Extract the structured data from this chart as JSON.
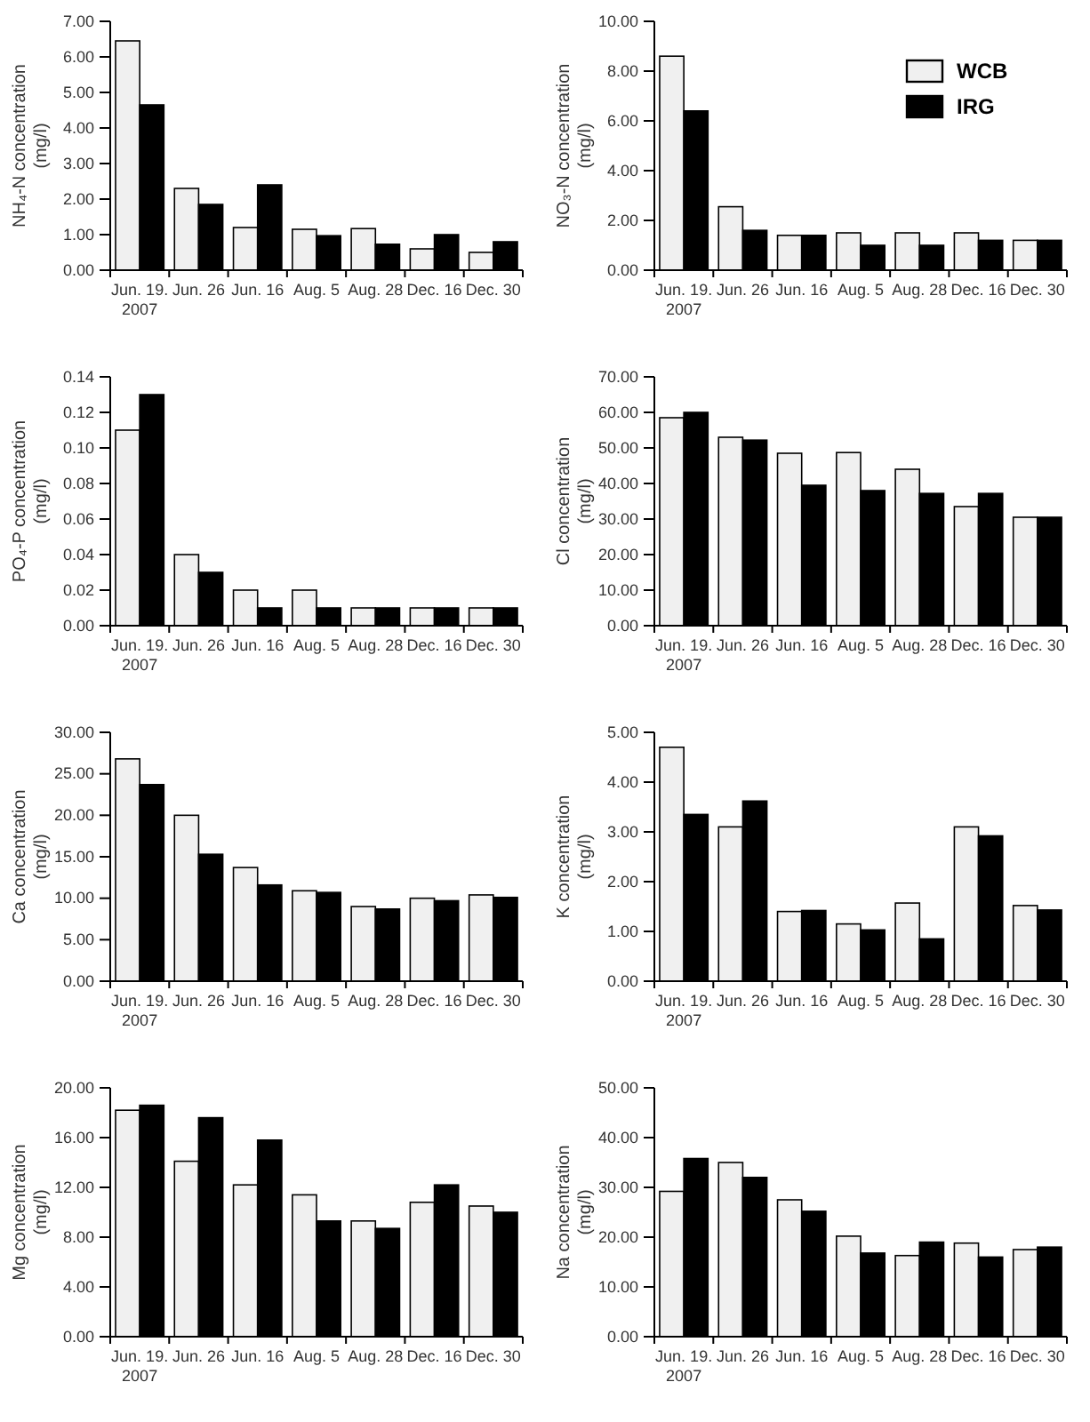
{
  "chart_data": [
    {
      "type": "bar",
      "ylabel": "NH₄-N concentration\n(mg/l)",
      "categories": [
        "Jun. 19. 2007",
        "Jun. 26",
        "Jun. 16",
        "Aug. 5",
        "Aug. 28",
        "Dec. 16",
        "Dec. 30"
      ],
      "ylim": [
        0,
        7
      ],
      "yticks": [
        {
          "value": 0,
          "label": "0.00"
        },
        {
          "value": 1,
          "label": "1.00"
        },
        {
          "value": 2,
          "label": "2.00"
        },
        {
          "value": 3,
          "label": "3.00"
        },
        {
          "value": 4,
          "label": "4.00"
        },
        {
          "value": 5,
          "label": "5.00"
        },
        {
          "value": 6,
          "label": "6.00"
        },
        {
          "value": 7,
          "label": "7.00"
        }
      ],
      "legend": false,
      "series": [
        {
          "color": "#f0f0f0",
          "values": [
            6.45,
            2.3,
            1.2,
            1.15,
            1.17,
            0.6,
            0.5
          ]
        },
        {
          "color": "#000000",
          "values": [
            4.65,
            1.85,
            2.4,
            0.97,
            0.73,
            1.0,
            0.8
          ]
        }
      ]
    },
    {
      "type": "bar",
      "ylabel": "NO₃-N concentration\n(mg/l)",
      "categories": [
        "Jun. 19. 2007",
        "Jun. 26",
        "Jun. 16",
        "Aug. 5",
        "Aug. 28",
        "Dec. 16",
        "Dec. 30"
      ],
      "ylim": [
        0,
        10
      ],
      "yticks": [
        {
          "value": 0,
          "label": "0.00"
        },
        {
          "value": 2,
          "label": "2.00"
        },
        {
          "value": 4,
          "label": "4.00"
        },
        {
          "value": 6,
          "label": "6.00"
        },
        {
          "value": 8,
          "label": "8.00"
        },
        {
          "value": 10,
          "label": "10.00"
        }
      ],
      "legend": "top right",
      "series": [
        {
          "name": "WCB",
          "color": "#f0f0f0",
          "values": [
            8.6,
            2.55,
            1.4,
            1.5,
            1.5,
            1.5,
            1.2
          ]
        },
        {
          "name": "IRG",
          "color": "#000000",
          "values": [
            6.4,
            1.6,
            1.4,
            1.0,
            1.0,
            1.2,
            1.2
          ]
        }
      ]
    },
    {
      "type": "bar",
      "ylabel": "PO₄-P concentration\n(mg/l)",
      "categories": [
        "Jun. 19. 2007",
        "Jun. 26",
        "Jun. 16",
        "Aug. 5",
        "Aug. 28",
        "Dec. 16",
        "Dec. 30"
      ],
      "ylim": [
        0,
        0.14
      ],
      "yticks": [
        {
          "value": 0,
          "label": "0.00"
        },
        {
          "value": 0.02,
          "label": "0.02"
        },
        {
          "value": 0.04,
          "label": "0.04"
        },
        {
          "value": 0.06,
          "label": "0.06"
        },
        {
          "value": 0.08,
          "label": "0.08"
        },
        {
          "value": 0.1,
          "label": "0.10"
        },
        {
          "value": 0.12,
          "label": "0.12"
        },
        {
          "value": 0.14,
          "label": "0.14"
        }
      ],
      "legend": false,
      "series": [
        {
          "color": "#f0f0f0",
          "values": [
            0.11,
            0.04,
            0.02,
            0.02,
            0.01,
            0.01,
            0.01
          ]
        },
        {
          "color": "#000000",
          "values": [
            0.13,
            0.03,
            0.01,
            0.01,
            0.01,
            0.01,
            0.01
          ]
        }
      ]
    },
    {
      "type": "bar",
      "ylabel": "Cl  concentration\n(mg/l)",
      "categories": [
        "Jun. 19. 2007",
        "Jun. 26",
        "Jun. 16",
        "Aug. 5",
        "Aug. 28",
        "Dec. 16",
        "Dec. 30"
      ],
      "ylim": [
        0,
        70
      ],
      "yticks": [
        {
          "value": 0,
          "label": "0.00"
        },
        {
          "value": 10,
          "label": "10.00"
        },
        {
          "value": 20,
          "label": "20.00"
        },
        {
          "value": 30,
          "label": "30.00"
        },
        {
          "value": 40,
          "label": "40.00"
        },
        {
          "value": 50,
          "label": "50.00"
        },
        {
          "value": 60,
          "label": "60.00"
        },
        {
          "value": 70,
          "label": "70.00"
        }
      ],
      "legend": false,
      "series": [
        {
          "color": "#f0f0f0",
          "values": [
            58.5,
            53,
            48.5,
            48.7,
            44,
            33.5,
            30.5
          ]
        },
        {
          "color": "#000000",
          "values": [
            60,
            52.2,
            39.5,
            38,
            37.2,
            37.2,
            30.5
          ]
        }
      ]
    },
    {
      "type": "bar",
      "ylabel": "Ca  concentration\n(mg/l)",
      "categories": [
        "Jun. 19. 2007",
        "Jun. 26",
        "Jun. 16",
        "Aug. 5",
        "Aug. 28",
        "Dec. 16",
        "Dec. 30"
      ],
      "ylim": [
        0,
        30
      ],
      "yticks": [
        {
          "value": 0,
          "label": "0.00"
        },
        {
          "value": 5,
          "label": "5.00"
        },
        {
          "value": 10,
          "label": "10.00"
        },
        {
          "value": 15,
          "label": "15.00"
        },
        {
          "value": 20,
          "label": "20.00"
        },
        {
          "value": 25,
          "label": "25.00"
        },
        {
          "value": 30,
          "label": "30.00"
        }
      ],
      "legend": false,
      "series": [
        {
          "color": "#f0f0f0",
          "values": [
            26.8,
            20,
            13.7,
            10.9,
            9.0,
            10.0,
            10.4
          ]
        },
        {
          "color": "#000000",
          "values": [
            23.7,
            15.3,
            11.6,
            10.7,
            8.7,
            9.7,
            10.1
          ]
        }
      ]
    },
    {
      "type": "bar",
      "ylabel": "K  concentration\n(mg/l)",
      "categories": [
        "Jun. 19. 2007",
        "Jun. 26",
        "Jun. 16",
        "Aug. 5",
        "Aug. 28",
        "Dec. 16",
        "Dec. 30"
      ],
      "ylim": [
        0,
        5
      ],
      "yticks": [
        {
          "value": 0,
          "label": "0.00"
        },
        {
          "value": 1,
          "label": "1.00"
        },
        {
          "value": 2,
          "label": "2.00"
        },
        {
          "value": 3,
          "label": "3.00"
        },
        {
          "value": 4,
          "label": "4.00"
        },
        {
          "value": 5,
          "label": "5.00"
        }
      ],
      "legend": false,
      "series": [
        {
          "color": "#f0f0f0",
          "values": [
            4.7,
            3.1,
            1.4,
            1.15,
            1.57,
            3.1,
            1.52
          ]
        },
        {
          "color": "#000000",
          "values": [
            3.35,
            3.62,
            1.42,
            1.03,
            0.85,
            2.92,
            1.43
          ]
        }
      ]
    },
    {
      "type": "bar",
      "ylabel": "Mg  concentration\n(mg/l)",
      "categories": [
        "Jun. 19. 2007",
        "Jun. 26",
        "Jun. 16",
        "Aug. 5",
        "Aug. 28",
        "Dec. 16",
        "Dec. 30"
      ],
      "ylim": [
        0,
        20
      ],
      "yticks": [
        {
          "value": 0,
          "label": "0.00"
        },
        {
          "value": 4,
          "label": "4.00"
        },
        {
          "value": 8,
          "label": "8.00"
        },
        {
          "value": 12,
          "label": "12.00"
        },
        {
          "value": 16,
          "label": "16.00"
        },
        {
          "value": 20,
          "label": "20.00"
        }
      ],
      "legend": false,
      "series": [
        {
          "color": "#f0f0f0",
          "values": [
            18.2,
            14.1,
            12.2,
            11.4,
            9.3,
            10.8,
            10.5
          ]
        },
        {
          "color": "#000000",
          "values": [
            18.6,
            17.6,
            15.8,
            9.3,
            8.7,
            12.2,
            10.0
          ]
        }
      ]
    },
    {
      "type": "bar",
      "ylabel": "Na  concentration\n(mg/l)",
      "categories": [
        "Jun. 19. 2007",
        "Jun. 26",
        "Jun. 16",
        "Aug. 5",
        "Aug. 28",
        "Dec. 16",
        "Dec. 30"
      ],
      "ylim": [
        0,
        50
      ],
      "yticks": [
        {
          "value": 0,
          "label": "0.00"
        },
        {
          "value": 10,
          "label": "10.00"
        },
        {
          "value": 20,
          "label": "20.00"
        },
        {
          "value": 30,
          "label": "30.00"
        },
        {
          "value": 40,
          "label": "40.00"
        },
        {
          "value": 50,
          "label": "50.00"
        }
      ],
      "legend": false,
      "series": [
        {
          "color": "#f0f0f0",
          "values": [
            29.2,
            35,
            27.5,
            20.2,
            16.3,
            18.8,
            17.5
          ]
        },
        {
          "color": "#000000",
          "values": [
            35.8,
            32,
            25.2,
            16.8,
            19,
            16,
            18
          ]
        }
      ]
    }
  ]
}
